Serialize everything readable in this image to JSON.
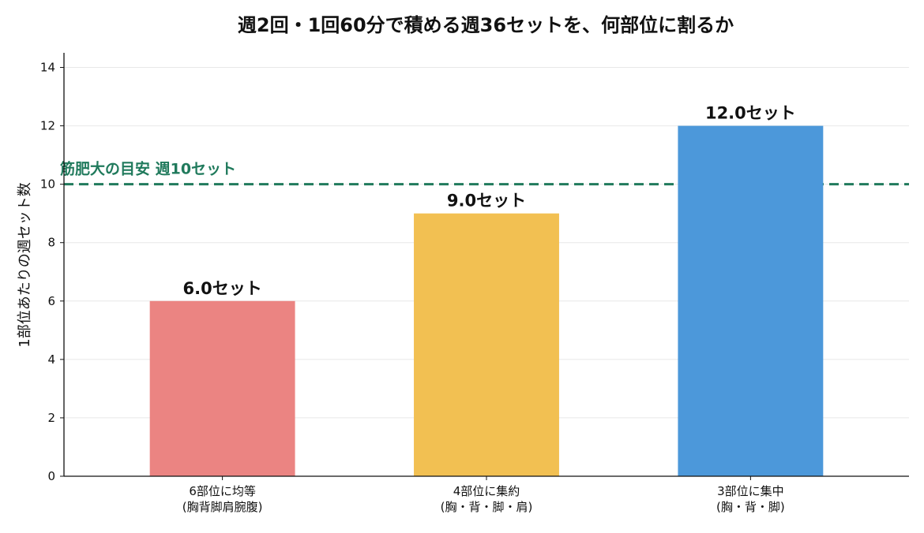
{
  "chart_data": {
    "type": "bar",
    "title": "週2回・1回60分で積める週36セットを、何部位に割るか",
    "xlabel": "",
    "ylabel": "1部位あたりの週セット数",
    "ylim": [
      0,
      14.5
    ],
    "yticks": [
      0,
      2,
      4,
      6,
      8,
      10,
      12,
      14
    ],
    "grid": "horizontal",
    "categories": [
      [
        "6部位に均等",
        "(胸背脚肩腕腹)"
      ],
      [
        "4部位に集約",
        "(胸・背・脚・肩)"
      ],
      [
        "3部位に集中",
        "(胸・背・脚)"
      ]
    ],
    "values": [
      6.0,
      9.0,
      12.0
    ],
    "data_labels": [
      "6.0セット",
      "9.0セット",
      "12.0セット"
    ],
    "colors": [
      "#eb8482",
      "#f2c052",
      "#4c98da"
    ],
    "reference_line": {
      "value": 10,
      "label": "筋肥大の目安 週10セット",
      "color": "#207a5c",
      "style": "dashed"
    }
  }
}
